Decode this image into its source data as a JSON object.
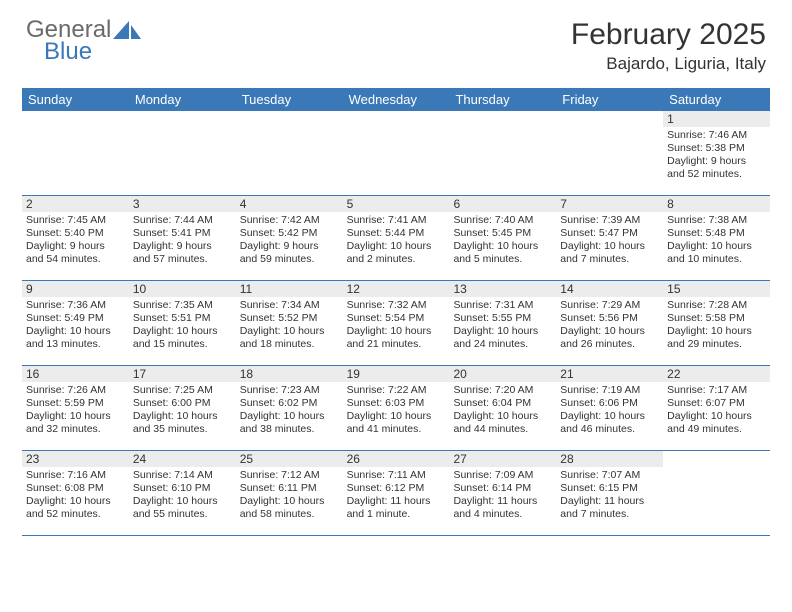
{
  "logo": {
    "general": "General",
    "blue": "Blue"
  },
  "title": "February 2025",
  "location": "Bajardo, Liguria, Italy",
  "colors": {
    "header_bg": "#3a78b7",
    "header_text": "#ffffff",
    "daynum_bg": "#ececec",
    "border": "#3a78b7",
    "text": "#333333",
    "logo_gray": "#6a6a6a",
    "logo_blue": "#3a78b7",
    "page_bg": "#ffffff"
  },
  "typography": {
    "title_fontsize": 30,
    "location_fontsize": 17,
    "header_fontsize": 13,
    "daynum_fontsize": 12,
    "cell_fontsize": 10.5,
    "logo_fontsize": 24
  },
  "weekdays": [
    "Sunday",
    "Monday",
    "Tuesday",
    "Wednesday",
    "Thursday",
    "Friday",
    "Saturday"
  ],
  "grid": [
    [
      {
        "empty": true
      },
      {
        "empty": true
      },
      {
        "empty": true
      },
      {
        "empty": true
      },
      {
        "empty": true
      },
      {
        "empty": true
      },
      {
        "day": "1",
        "sunrise": "Sunrise: 7:46 AM",
        "sunset": "Sunset: 5:38 PM",
        "daylight1": "Daylight: 9 hours",
        "daylight2": "and 52 minutes."
      }
    ],
    [
      {
        "day": "2",
        "sunrise": "Sunrise: 7:45 AM",
        "sunset": "Sunset: 5:40 PM",
        "daylight1": "Daylight: 9 hours",
        "daylight2": "and 54 minutes."
      },
      {
        "day": "3",
        "sunrise": "Sunrise: 7:44 AM",
        "sunset": "Sunset: 5:41 PM",
        "daylight1": "Daylight: 9 hours",
        "daylight2": "and 57 minutes."
      },
      {
        "day": "4",
        "sunrise": "Sunrise: 7:42 AM",
        "sunset": "Sunset: 5:42 PM",
        "daylight1": "Daylight: 9 hours",
        "daylight2": "and 59 minutes."
      },
      {
        "day": "5",
        "sunrise": "Sunrise: 7:41 AM",
        "sunset": "Sunset: 5:44 PM",
        "daylight1": "Daylight: 10 hours",
        "daylight2": "and 2 minutes."
      },
      {
        "day": "6",
        "sunrise": "Sunrise: 7:40 AM",
        "sunset": "Sunset: 5:45 PM",
        "daylight1": "Daylight: 10 hours",
        "daylight2": "and 5 minutes."
      },
      {
        "day": "7",
        "sunrise": "Sunrise: 7:39 AM",
        "sunset": "Sunset: 5:47 PM",
        "daylight1": "Daylight: 10 hours",
        "daylight2": "and 7 minutes."
      },
      {
        "day": "8",
        "sunrise": "Sunrise: 7:38 AM",
        "sunset": "Sunset: 5:48 PM",
        "daylight1": "Daylight: 10 hours",
        "daylight2": "and 10 minutes."
      }
    ],
    [
      {
        "day": "9",
        "sunrise": "Sunrise: 7:36 AM",
        "sunset": "Sunset: 5:49 PM",
        "daylight1": "Daylight: 10 hours",
        "daylight2": "and 13 minutes."
      },
      {
        "day": "10",
        "sunrise": "Sunrise: 7:35 AM",
        "sunset": "Sunset: 5:51 PM",
        "daylight1": "Daylight: 10 hours",
        "daylight2": "and 15 minutes."
      },
      {
        "day": "11",
        "sunrise": "Sunrise: 7:34 AM",
        "sunset": "Sunset: 5:52 PM",
        "daylight1": "Daylight: 10 hours",
        "daylight2": "and 18 minutes."
      },
      {
        "day": "12",
        "sunrise": "Sunrise: 7:32 AM",
        "sunset": "Sunset: 5:54 PM",
        "daylight1": "Daylight: 10 hours",
        "daylight2": "and 21 minutes."
      },
      {
        "day": "13",
        "sunrise": "Sunrise: 7:31 AM",
        "sunset": "Sunset: 5:55 PM",
        "daylight1": "Daylight: 10 hours",
        "daylight2": "and 24 minutes."
      },
      {
        "day": "14",
        "sunrise": "Sunrise: 7:29 AM",
        "sunset": "Sunset: 5:56 PM",
        "daylight1": "Daylight: 10 hours",
        "daylight2": "and 26 minutes."
      },
      {
        "day": "15",
        "sunrise": "Sunrise: 7:28 AM",
        "sunset": "Sunset: 5:58 PM",
        "daylight1": "Daylight: 10 hours",
        "daylight2": "and 29 minutes."
      }
    ],
    [
      {
        "day": "16",
        "sunrise": "Sunrise: 7:26 AM",
        "sunset": "Sunset: 5:59 PM",
        "daylight1": "Daylight: 10 hours",
        "daylight2": "and 32 minutes."
      },
      {
        "day": "17",
        "sunrise": "Sunrise: 7:25 AM",
        "sunset": "Sunset: 6:00 PM",
        "daylight1": "Daylight: 10 hours",
        "daylight2": "and 35 minutes."
      },
      {
        "day": "18",
        "sunrise": "Sunrise: 7:23 AM",
        "sunset": "Sunset: 6:02 PM",
        "daylight1": "Daylight: 10 hours",
        "daylight2": "and 38 minutes."
      },
      {
        "day": "19",
        "sunrise": "Sunrise: 7:22 AM",
        "sunset": "Sunset: 6:03 PM",
        "daylight1": "Daylight: 10 hours",
        "daylight2": "and 41 minutes."
      },
      {
        "day": "20",
        "sunrise": "Sunrise: 7:20 AM",
        "sunset": "Sunset: 6:04 PM",
        "daylight1": "Daylight: 10 hours",
        "daylight2": "and 44 minutes."
      },
      {
        "day": "21",
        "sunrise": "Sunrise: 7:19 AM",
        "sunset": "Sunset: 6:06 PM",
        "daylight1": "Daylight: 10 hours",
        "daylight2": "and 46 minutes."
      },
      {
        "day": "22",
        "sunrise": "Sunrise: 7:17 AM",
        "sunset": "Sunset: 6:07 PM",
        "daylight1": "Daylight: 10 hours",
        "daylight2": "and 49 minutes."
      }
    ],
    [
      {
        "day": "23",
        "sunrise": "Sunrise: 7:16 AM",
        "sunset": "Sunset: 6:08 PM",
        "daylight1": "Daylight: 10 hours",
        "daylight2": "and 52 minutes."
      },
      {
        "day": "24",
        "sunrise": "Sunrise: 7:14 AM",
        "sunset": "Sunset: 6:10 PM",
        "daylight1": "Daylight: 10 hours",
        "daylight2": "and 55 minutes."
      },
      {
        "day": "25",
        "sunrise": "Sunrise: 7:12 AM",
        "sunset": "Sunset: 6:11 PM",
        "daylight1": "Daylight: 10 hours",
        "daylight2": "and 58 minutes."
      },
      {
        "day": "26",
        "sunrise": "Sunrise: 7:11 AM",
        "sunset": "Sunset: 6:12 PM",
        "daylight1": "Daylight: 11 hours",
        "daylight2": "and 1 minute."
      },
      {
        "day": "27",
        "sunrise": "Sunrise: 7:09 AM",
        "sunset": "Sunset: 6:14 PM",
        "daylight1": "Daylight: 11 hours",
        "daylight2": "and 4 minutes."
      },
      {
        "day": "28",
        "sunrise": "Sunrise: 7:07 AM",
        "sunset": "Sunset: 6:15 PM",
        "daylight1": "Daylight: 11 hours",
        "daylight2": "and 7 minutes."
      },
      {
        "empty": true
      }
    ]
  ]
}
